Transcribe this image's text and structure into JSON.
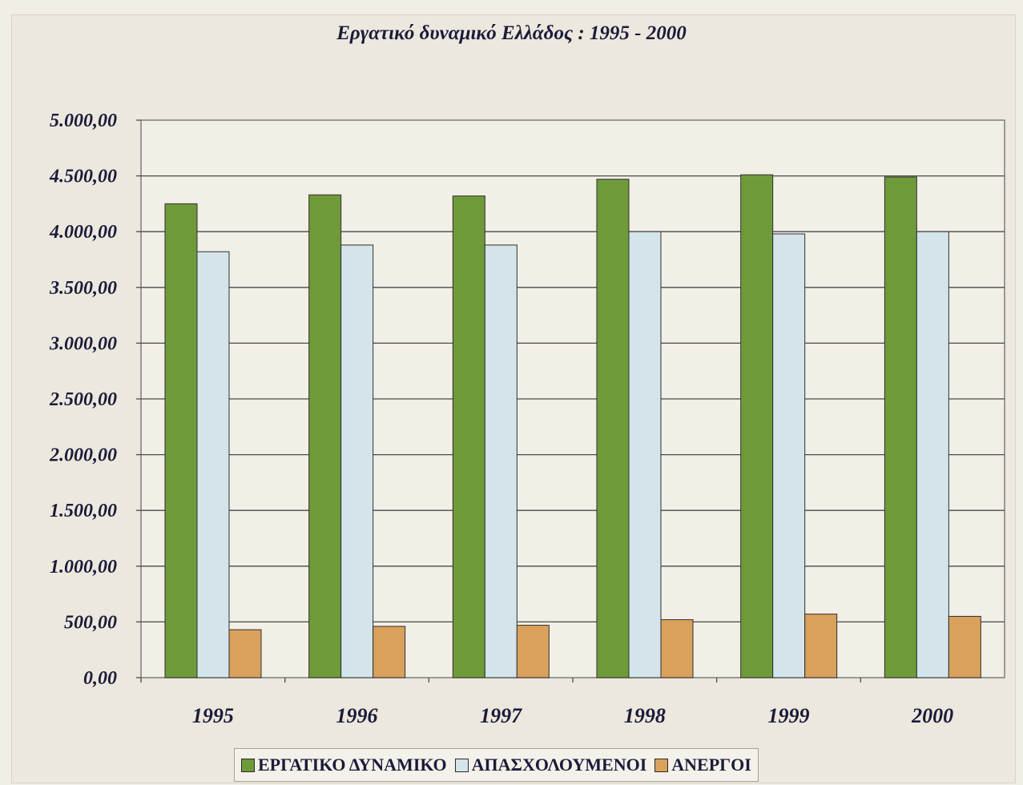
{
  "chart_data": {
    "type": "bar",
    "title": "Εργατικό δυναμικό Ελλάδος : 1995 - 2000",
    "xlabel": "",
    "ylabel": "",
    "categories": [
      "1995",
      "1996",
      "1997",
      "1998",
      "1999",
      "2000"
    ],
    "ylim": [
      0,
      5000
    ],
    "yticks": [
      "0,00",
      "500,00",
      "1.000,00",
      "1.500,00",
      "2.000,00",
      "2.500,00",
      "3.000,00",
      "3.500,00",
      "4.000,00",
      "4.500,00",
      "5.000,00"
    ],
    "grid": true,
    "legend_position": "bottom",
    "series": [
      {
        "name": "ΕΡΓΑΤΙΚΟ ΔΥΝΑΜΙΚΟ",
        "color": "#6f9a3a",
        "values": [
          4250,
          4330,
          4320,
          4470,
          4510,
          4490
        ]
      },
      {
        "name": "ΑΠΑΣΧΟΛΟΥΜΕΝΟΙ",
        "color": "#d4e4ea",
        "values": [
          3820,
          3880,
          3880,
          4000,
          3980,
          4000
        ]
      },
      {
        "name": "ΑΝΕΡΓΟΙ",
        "color": "#d9a15c",
        "values": [
          430,
          460,
          470,
          520,
          570,
          550
        ]
      }
    ]
  }
}
